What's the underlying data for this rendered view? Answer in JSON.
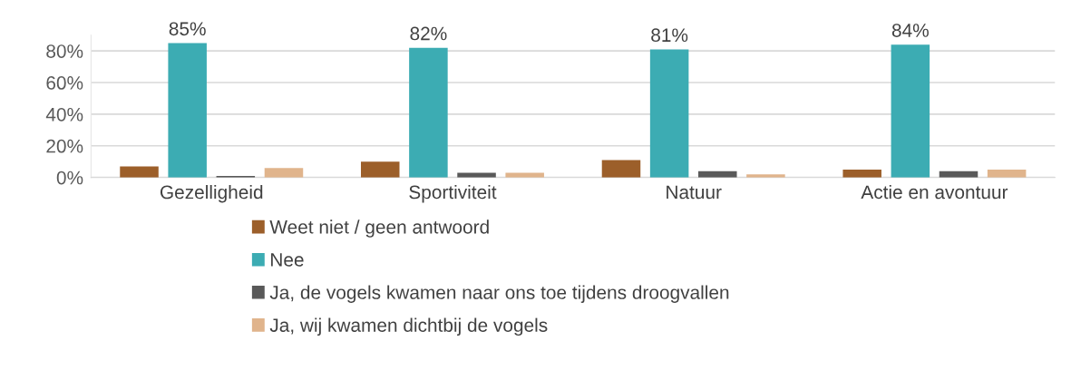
{
  "chart_data": {
    "type": "bar",
    "categories": [
      "Gezelligheid",
      "Sportiviteit",
      "Natuur",
      "Actie en avontuur"
    ],
    "series": [
      {
        "name": "Weet niet / geen antwoord",
        "color": "#9c5f2a",
        "values": [
          7,
          10,
          11,
          5
        ]
      },
      {
        "name": "Nee",
        "color": "#3cacb3",
        "values": [
          85,
          82,
          81,
          84
        ],
        "value_labels": [
          "85%",
          "82%",
          "81%",
          "84%"
        ]
      },
      {
        "name": "Ja, de vogels kwamen naar ons toe tijdens droogvallen",
        "color": "#595959",
        "values": [
          1,
          3,
          4,
          4
        ]
      },
      {
        "name": "Ja, wij kwamen dichtbij de vogels",
        "color": "#e0b48c",
        "values": [
          6,
          3,
          2,
          5
        ]
      }
    ],
    "ylim": [
      0,
      90
    ],
    "yticks": [
      {
        "value": 0,
        "label": "0%"
      },
      {
        "value": 20,
        "label": "20%"
      },
      {
        "value": 40,
        "label": "40%"
      },
      {
        "value": 60,
        "label": "60%"
      },
      {
        "value": 80,
        "label": "80%"
      }
    ],
    "grid": "y",
    "legend": "bottom"
  }
}
